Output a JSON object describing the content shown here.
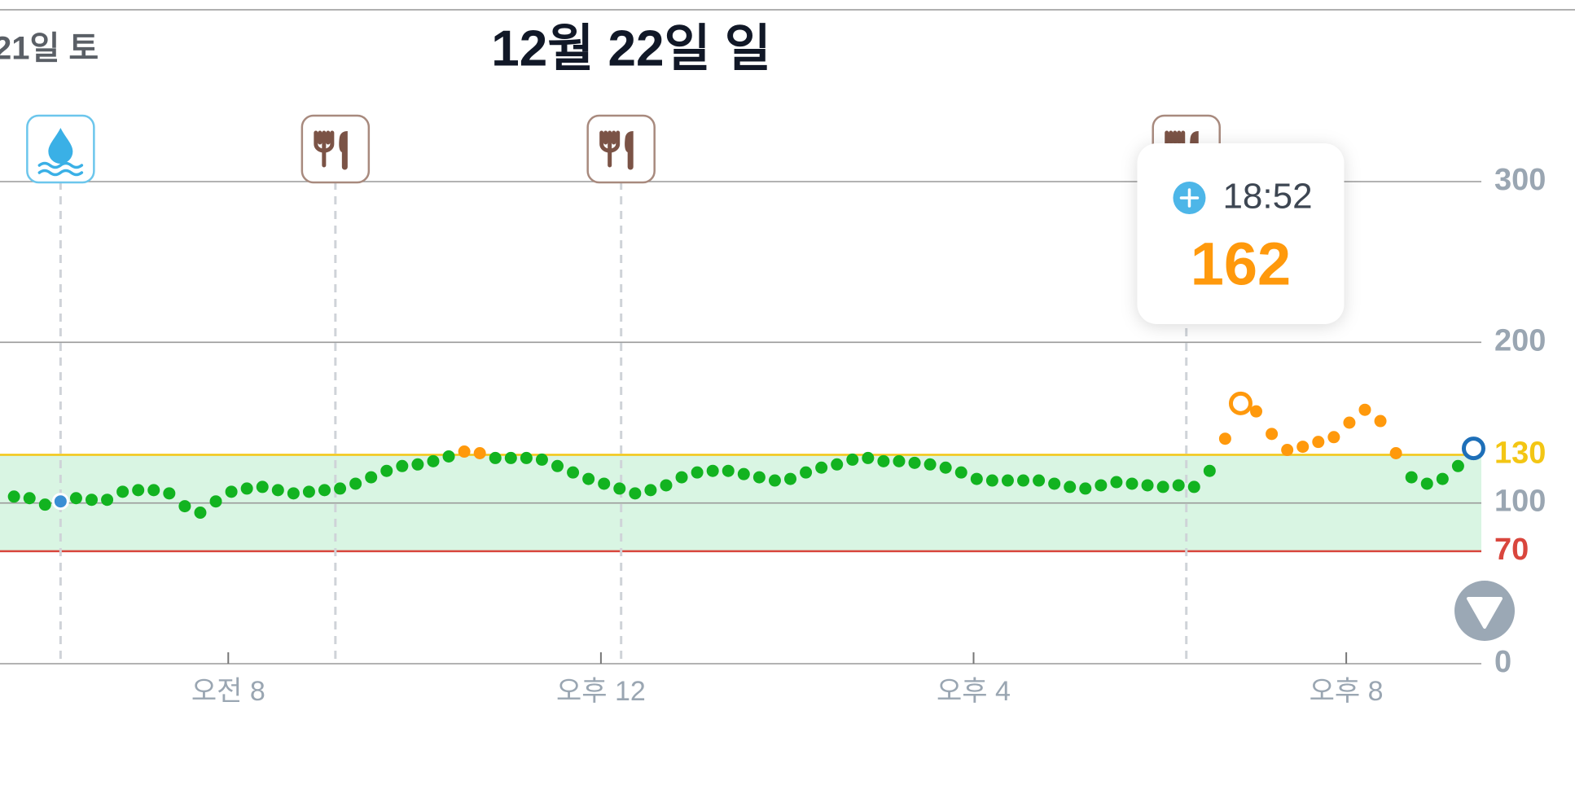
{
  "header": {
    "prev_day": "21일 토",
    "title": "12월 22일 일"
  },
  "chart_data": {
    "type": "scatter",
    "x": [
      342,
      352,
      362,
      372,
      382,
      392,
      402,
      412,
      422,
      432,
      442,
      452,
      462,
      472,
      482,
      492,
      502,
      512,
      522,
      532,
      542,
      552,
      562,
      572,
      582,
      592,
      602,
      612,
      622,
      632,
      642,
      652,
      662,
      672,
      682,
      692,
      702,
      712,
      722,
      732,
      742,
      752,
      762,
      772,
      782,
      792,
      802,
      812,
      822,
      832,
      842,
      852,
      862,
      872,
      882,
      892,
      902,
      912,
      922,
      932,
      942,
      952,
      962,
      972,
      982,
      992,
      1002,
      1012,
      1022,
      1032,
      1042,
      1052,
      1062,
      1072,
      1082,
      1092,
      1102,
      1112,
      1122,
      1132,
      1142,
      1152,
      1162,
      1172,
      1182,
      1192,
      1202,
      1212,
      1222,
      1232,
      1242,
      1252,
      1262,
      1272,
      1282
    ],
    "values": [
      104,
      103,
      99,
      101,
      103,
      102,
      102,
      107,
      108,
      108,
      106,
      98,
      94,
      101,
      107,
      109,
      110,
      108,
      106,
      107,
      108,
      109,
      112,
      116,
      120,
      123,
      124,
      126,
      129,
      132,
      131,
      128,
      128,
      128,
      127,
      123,
      119,
      115,
      112,
      109,
      106,
      108,
      111,
      116,
      119,
      120,
      120,
      118,
      116,
      114,
      115,
      119,
      122,
      124,
      127,
      128,
      126,
      126,
      125,
      124,
      122,
      119,
      115,
      114,
      114,
      114,
      114,
      112,
      110,
      109,
      111,
      113,
      112,
      111,
      110,
      111,
      110,
      120,
      140,
      162,
      157,
      143,
      133,
      135,
      138,
      141,
      150,
      158,
      151,
      131,
      116,
      112,
      115,
      123,
      134
    ],
    "color": "#12b320",
    "color_high": "#ff990c",
    "xlim": [
      333,
      1287
    ],
    "xticks": [
      {
        "value": 480,
        "label": "오전 8"
      },
      {
        "value": 720,
        "label": "오후 12"
      },
      {
        "value": 960,
        "label": "오후 4"
      },
      {
        "value": 1200,
        "label": "오후 8"
      }
    ],
    "ylim": [
      0,
      300
    ],
    "yticks": [
      0,
      100,
      200,
      300
    ],
    "high": {
      "value": 130,
      "color": "#f3c614"
    },
    "low": {
      "value": 70,
      "color": "#d9463d"
    },
    "range_fill": "#d9f5e3",
    "events": [
      {
        "type": "water",
        "x": 372
      },
      {
        "type": "meal",
        "x": 549
      },
      {
        "type": "meal",
        "x": 733
      },
      {
        "type": "meal",
        "x": 1097
      }
    ],
    "tooltip": {
      "time": "18:52",
      "value": 162
    }
  }
}
